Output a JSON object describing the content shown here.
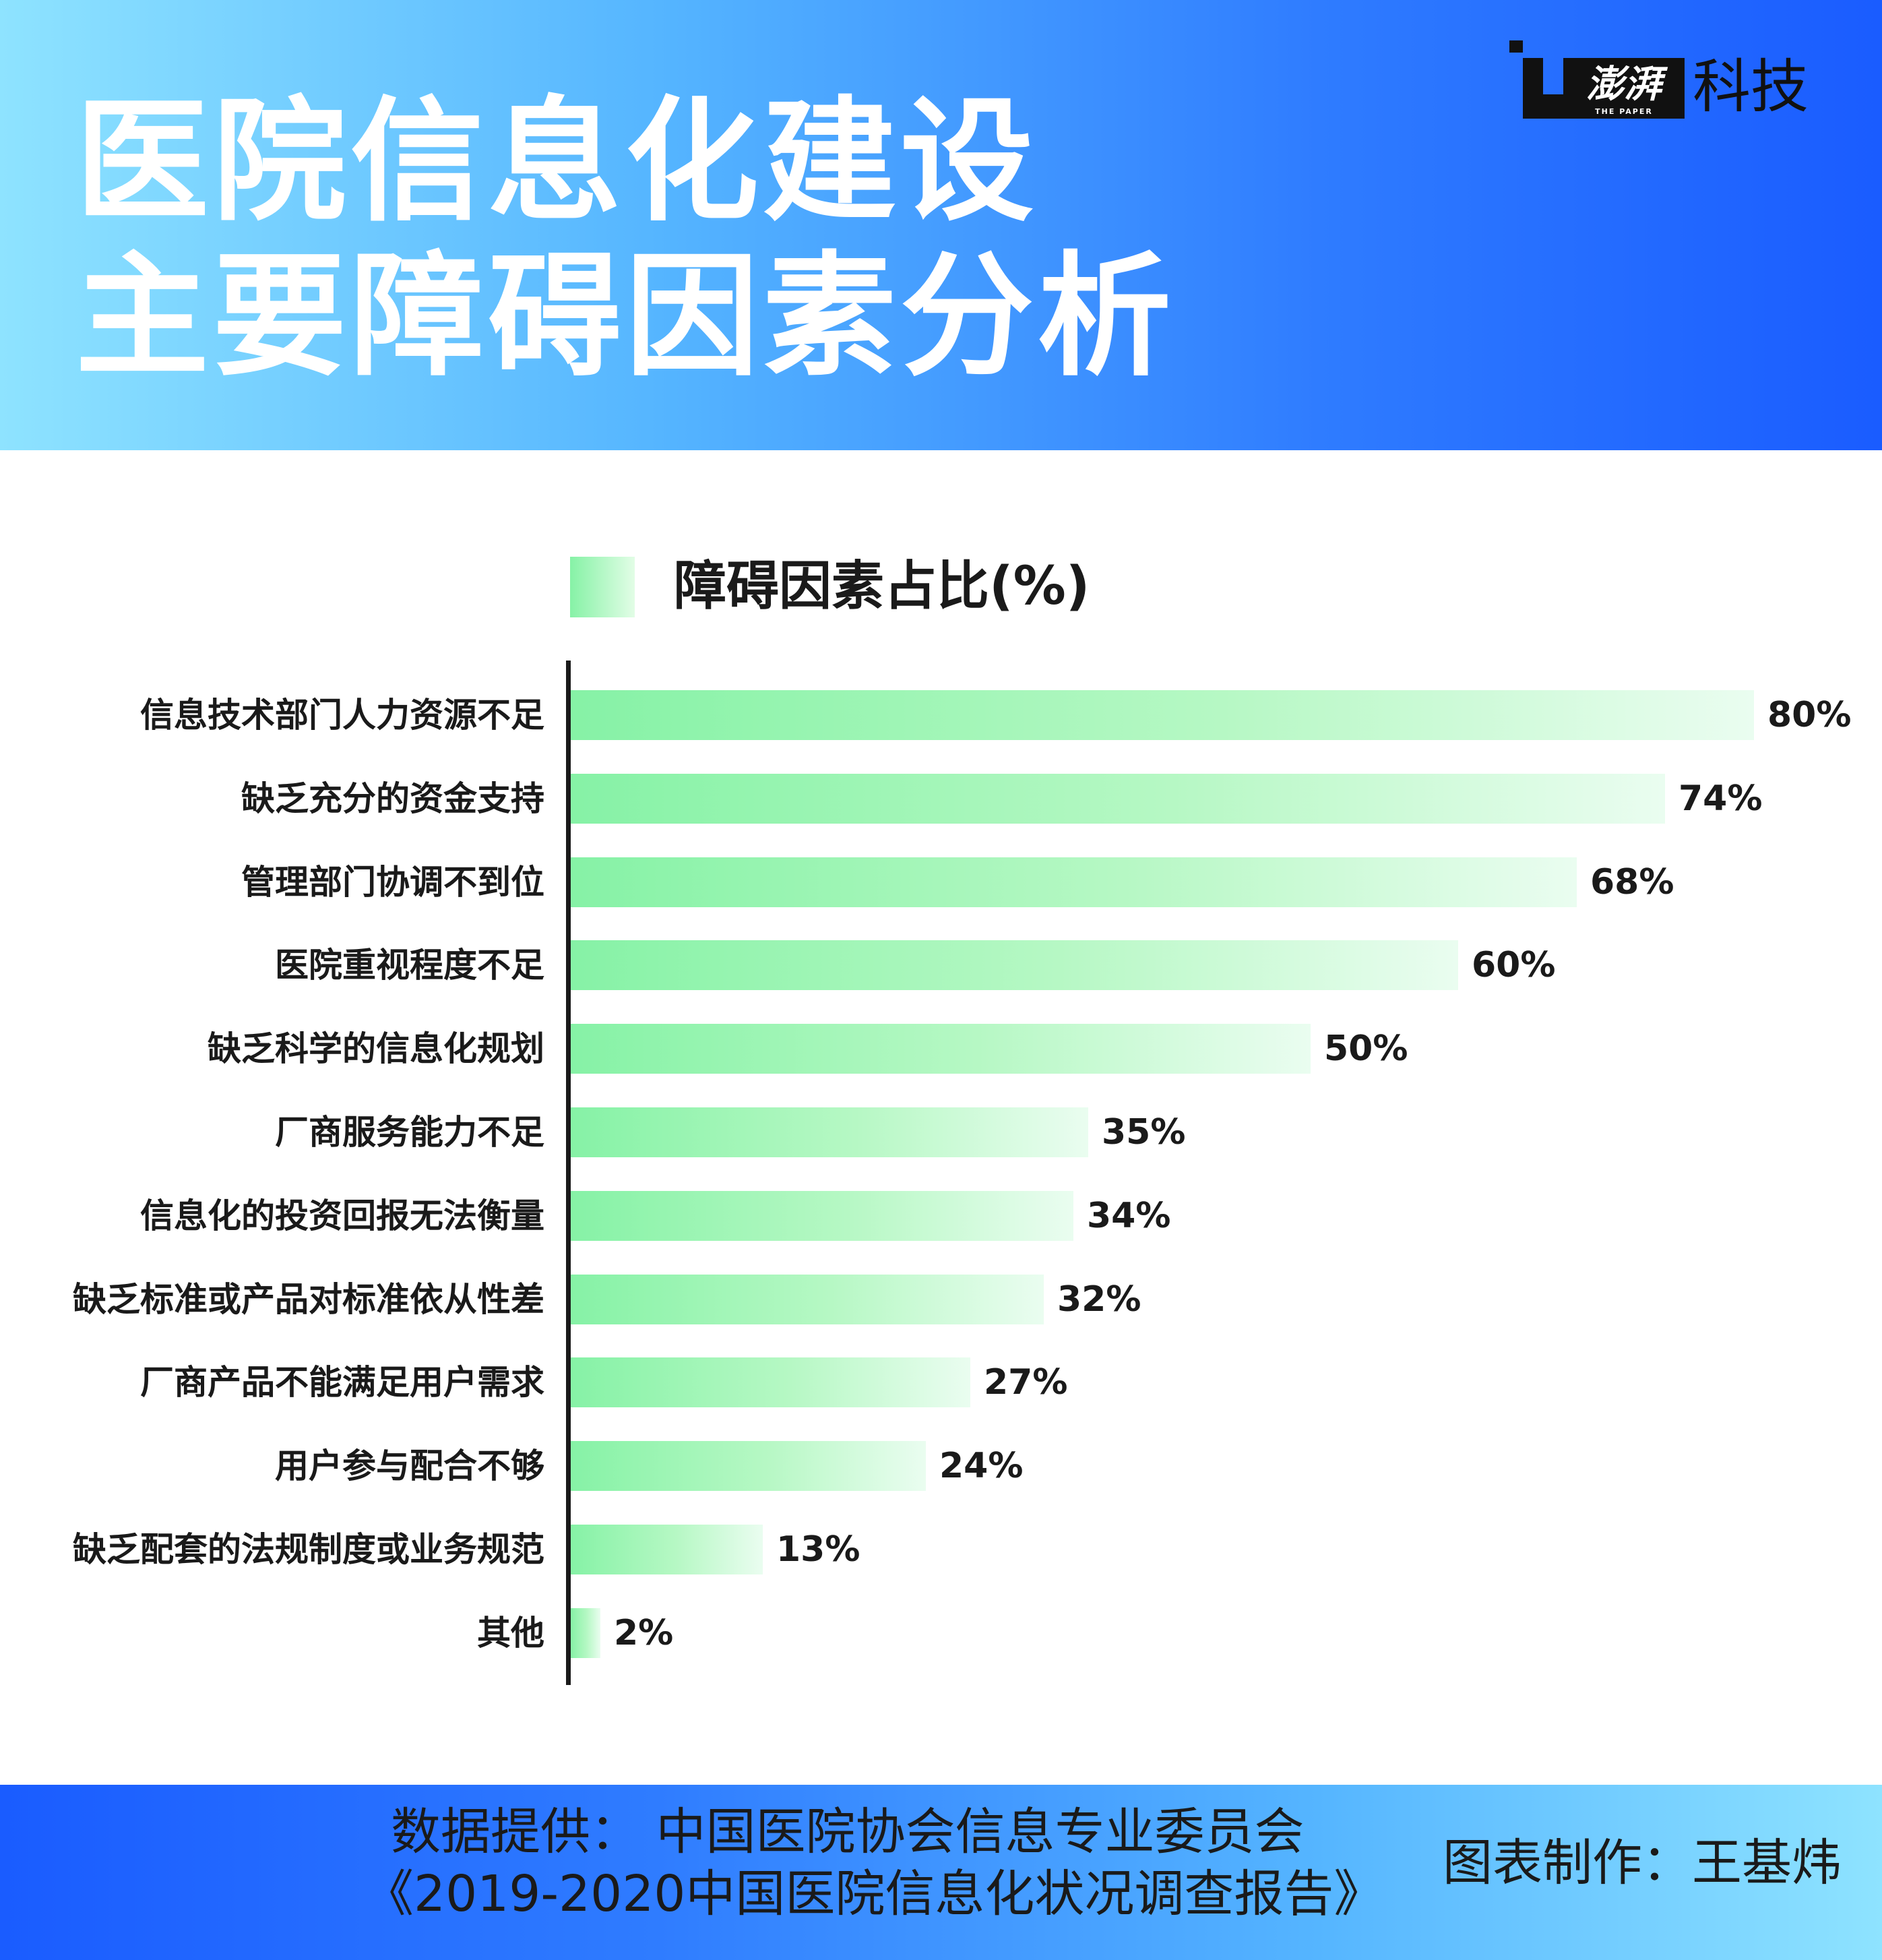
{
  "header": {
    "title_line1": "医院信息化建设",
    "title_line2": "主要障碍因素分析",
    "logo_brand": "澎湃",
    "logo_sub": "THE PAPER",
    "logo_text": "科技"
  },
  "chart_data": {
    "type": "bar",
    "orientation": "horizontal",
    "title": "医院信息化建设 主要障碍因素分析",
    "legend": [
      "障碍因素占比(%)"
    ],
    "legend_position": "top",
    "categories": [
      "信息技术部门人力资源不足",
      "缺乏充分的资金支持",
      "管理部门协调不到位",
      "医院重视程度不足",
      "缺乏科学的信息化规划",
      "厂商服务能力不足",
      "信息化的投资回报无法衡量",
      "缺乏标准或产品对标准依从性差",
      "厂商产品不能满足用户需求",
      "用户参与配合不够",
      "缺乏配套的法规制度或业务规范",
      "其他"
    ],
    "series": [
      {
        "name": "障碍因素占比(%)",
        "values": [
          80,
          74,
          68,
          60,
          50,
          35,
          34,
          32,
          27,
          24,
          13,
          2
        ],
        "labels": [
          "80%",
          "74%",
          "68%",
          "60%",
          "50%",
          "35%",
          "34%",
          "32%",
          "27%",
          "24%",
          "13%",
          "2%"
        ]
      }
    ],
    "xlim": [
      0,
      80
    ],
    "grid": false,
    "colors": {
      "bar_start": "#86f2a6",
      "bar_end": "#eafdf0"
    }
  },
  "footer": {
    "source_line1": "数据提供： 中国医院协会信息专业委员会",
    "source_line2": "《2019-2020中国医院信息化状况调查报告》",
    "credit": "图表制作：王基炜"
  }
}
